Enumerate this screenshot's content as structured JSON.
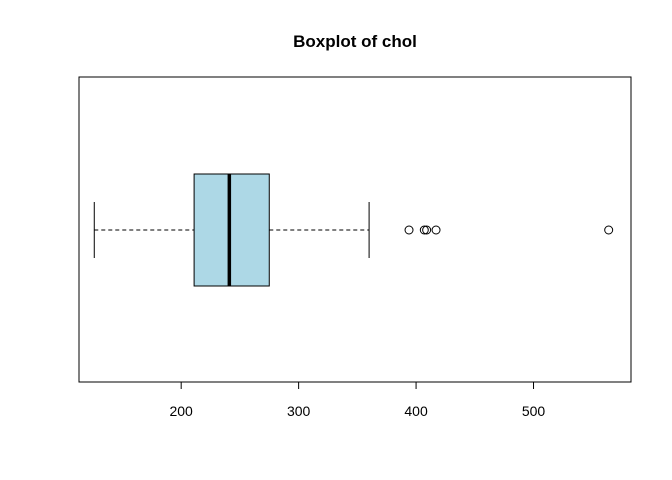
{
  "chart_data": {
    "type": "boxplot",
    "orientation": "horizontal",
    "title": "Boxplot of chol",
    "xlabel": "",
    "ylabel": "",
    "xlim": [
      113,
      583
    ],
    "xticks": [
      200,
      300,
      400,
      500
    ],
    "xtick_labels": [
      "200",
      "300",
      "400",
      "500"
    ],
    "box_fill": "#ADD8E6",
    "grid": false,
    "legend": "none",
    "series": [
      {
        "min": 126,
        "q1": 211,
        "median": 241,
        "q3": 275,
        "max": 360,
        "outliers": [
          394,
          407,
          409,
          417,
          564
        ]
      }
    ]
  }
}
